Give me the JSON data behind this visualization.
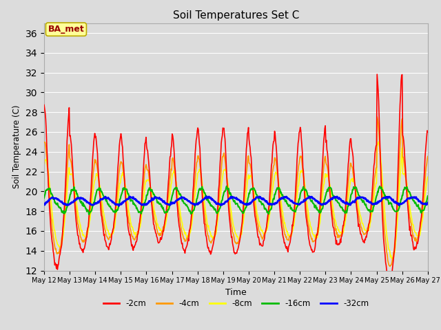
{
  "title": "Soil Temperatures Set C",
  "xlabel": "Time",
  "ylabel": "Soil Temperature (C)",
  "ylim": [
    12,
    37
  ],
  "yticks": [
    12,
    14,
    16,
    18,
    20,
    22,
    24,
    26,
    28,
    30,
    32,
    34,
    36
  ],
  "background_color": "#dcdcdc",
  "plot_bg_color": "#dcdcdc",
  "legend_labels": [
    "-2cm",
    "-4cm",
    "-8cm",
    "-16cm",
    "-32cm"
  ],
  "legend_colors": [
    "#ff0000",
    "#ff9900",
    "#ffff00",
    "#00bb00",
    "#0000ff"
  ],
  "line_widths": [
    1.2,
    1.2,
    1.2,
    1.5,
    2.0
  ],
  "annotation_text": "BA_met",
  "annotation_color": "#990000",
  "annotation_bg": "#ffff99",
  "n_days": 15,
  "pts_per_day": 48
}
